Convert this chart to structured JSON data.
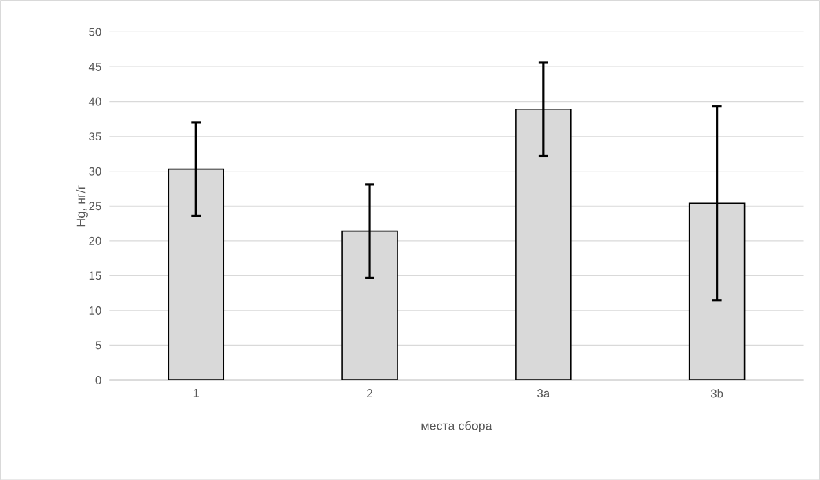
{
  "chart_data": {
    "type": "bar",
    "xlabel": "места сбора",
    "ylabel": "Hg, нг/г",
    "categories": [
      "1",
      "2",
      "3a",
      "3b"
    ],
    "values": [
      30.3,
      21.4,
      38.9,
      25.4
    ],
    "errors": [
      6.7,
      6.7,
      6.7,
      13.9
    ],
    "color": "#d9d9d9",
    "ylim": [
      0,
      50
    ],
    "yticks": [
      0,
      5,
      10,
      15,
      20,
      25,
      30,
      35,
      40,
      45,
      50
    ],
    "grid": "y"
  }
}
